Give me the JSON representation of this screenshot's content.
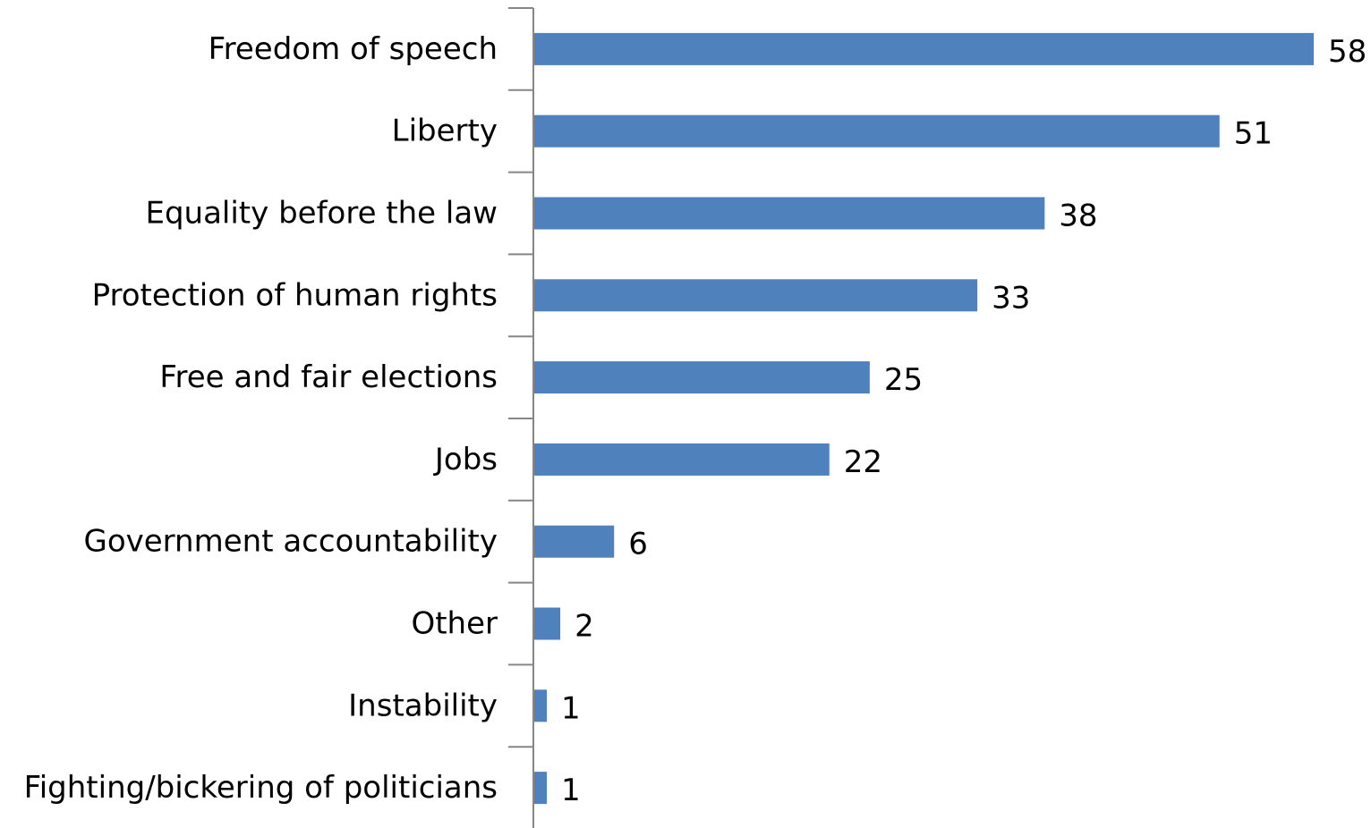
{
  "chart_data": {
    "type": "bar",
    "orientation": "horizontal",
    "title": "",
    "xlabel": "",
    "ylabel": "",
    "categories": [
      "Freedom of speech",
      "Liberty",
      "Equality before the law",
      "Protection of human rights",
      "Free and fair elections",
      "Jobs",
      "Government accountability",
      "Other",
      "Instability",
      "Fighting/bickering of politicians"
    ],
    "values": [
      58,
      51,
      38,
      33,
      25,
      22,
      6,
      2,
      1,
      1
    ],
    "value_labels": [
      "58",
      "51",
      "38",
      "33",
      "25",
      "22",
      "6",
      "2",
      "1",
      "1"
    ],
    "xlim": [
      0,
      58
    ],
    "data_labels": true,
    "grid": false,
    "legend": "none",
    "bar_color": "#4f81bd",
    "axis_color": "#868686"
  }
}
